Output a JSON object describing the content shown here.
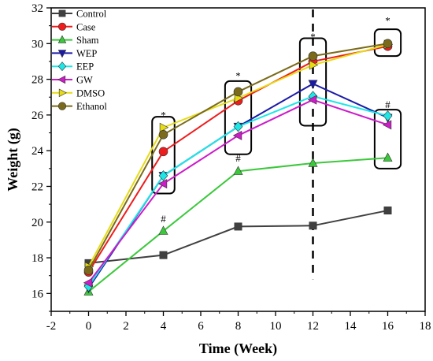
{
  "chart_data": {
    "type": "line",
    "xlabel": "Time (Week)",
    "ylabel": "Weight (g)",
    "xlim": [
      -2,
      18
    ],
    "ylim": [
      15,
      32
    ],
    "xticks": [
      -2,
      0,
      2,
      4,
      6,
      8,
      10,
      12,
      14,
      16,
      18
    ],
    "yticks": [
      16,
      18,
      20,
      22,
      24,
      26,
      28,
      30,
      32
    ],
    "grid": false,
    "legend_position": "top-left",
    "x": [
      0,
      4,
      8,
      12,
      16
    ],
    "series": [
      {
        "name": "Control",
        "color": "#404040",
        "marker": "square",
        "values": [
          17.7,
          18.15,
          19.75,
          19.8,
          20.65
        ]
      },
      {
        "name": "Case",
        "color": "#ee1c1c",
        "marker": "circle",
        "values": [
          17.2,
          23.95,
          26.8,
          29.0,
          29.85
        ]
      },
      {
        "name": "Sham",
        "color": "#3cc83c",
        "marker": "triangle-up",
        "values": [
          16.1,
          19.5,
          22.85,
          23.3,
          23.6
        ]
      },
      {
        "name": "WEP",
        "color": "#1a1aa8",
        "marker": "triangle-down",
        "values": [
          16.3,
          22.6,
          25.35,
          27.75,
          25.85
        ]
      },
      {
        "name": "EEP",
        "color": "#1ee6e6",
        "marker": "diamond",
        "values": [
          16.4,
          22.6,
          25.35,
          27.05,
          25.95
        ]
      },
      {
        "name": "GW",
        "color": "#cc1cc8",
        "marker": "triangle-left",
        "values": [
          16.6,
          22.15,
          24.85,
          26.85,
          25.45
        ]
      },
      {
        "name": "DMSO",
        "color": "#e6dc14",
        "marker": "triangle-right",
        "values": [
          17.5,
          25.3,
          26.95,
          28.8,
          29.95
        ]
      },
      {
        "name": "Ethanol",
        "color": "#7a6a1a",
        "marker": "circle",
        "values": [
          17.3,
          24.9,
          27.3,
          29.3,
          30.0
        ]
      }
    ],
    "annotations": [
      {
        "text": "*",
        "x": 4,
        "y": 25.8
      },
      {
        "text": "*",
        "x": 8,
        "y": 28.0
      },
      {
        "text": "*",
        "x": 12,
        "y": 30.2
      },
      {
        "text": "*",
        "x": 16,
        "y": 31.1
      },
      {
        "text": "#",
        "x": 4,
        "y": 20.0
      },
      {
        "text": "#",
        "x": 8,
        "y": 23.4
      },
      {
        "text": "#",
        "x": 16,
        "y": 26.4
      }
    ],
    "highlight_boxes": [
      {
        "x": [
          3.4,
          4.6
        ],
        "y": [
          21.6,
          25.9
        ]
      },
      {
        "x": [
          7.3,
          8.7
        ],
        "y": [
          23.8,
          27.9
        ]
      },
      {
        "x": [
          11.3,
          12.7
        ],
        "y": [
          25.4,
          30.3
        ]
      },
      {
        "x": [
          15.3,
          16.7
        ],
        "y": [
          29.3,
          30.8
        ]
      },
      {
        "x": [
          15.3,
          16.7
        ],
        "y": [
          23.0,
          26.3
        ]
      }
    ],
    "vline": {
      "x": 12,
      "style": "dashed"
    }
  }
}
